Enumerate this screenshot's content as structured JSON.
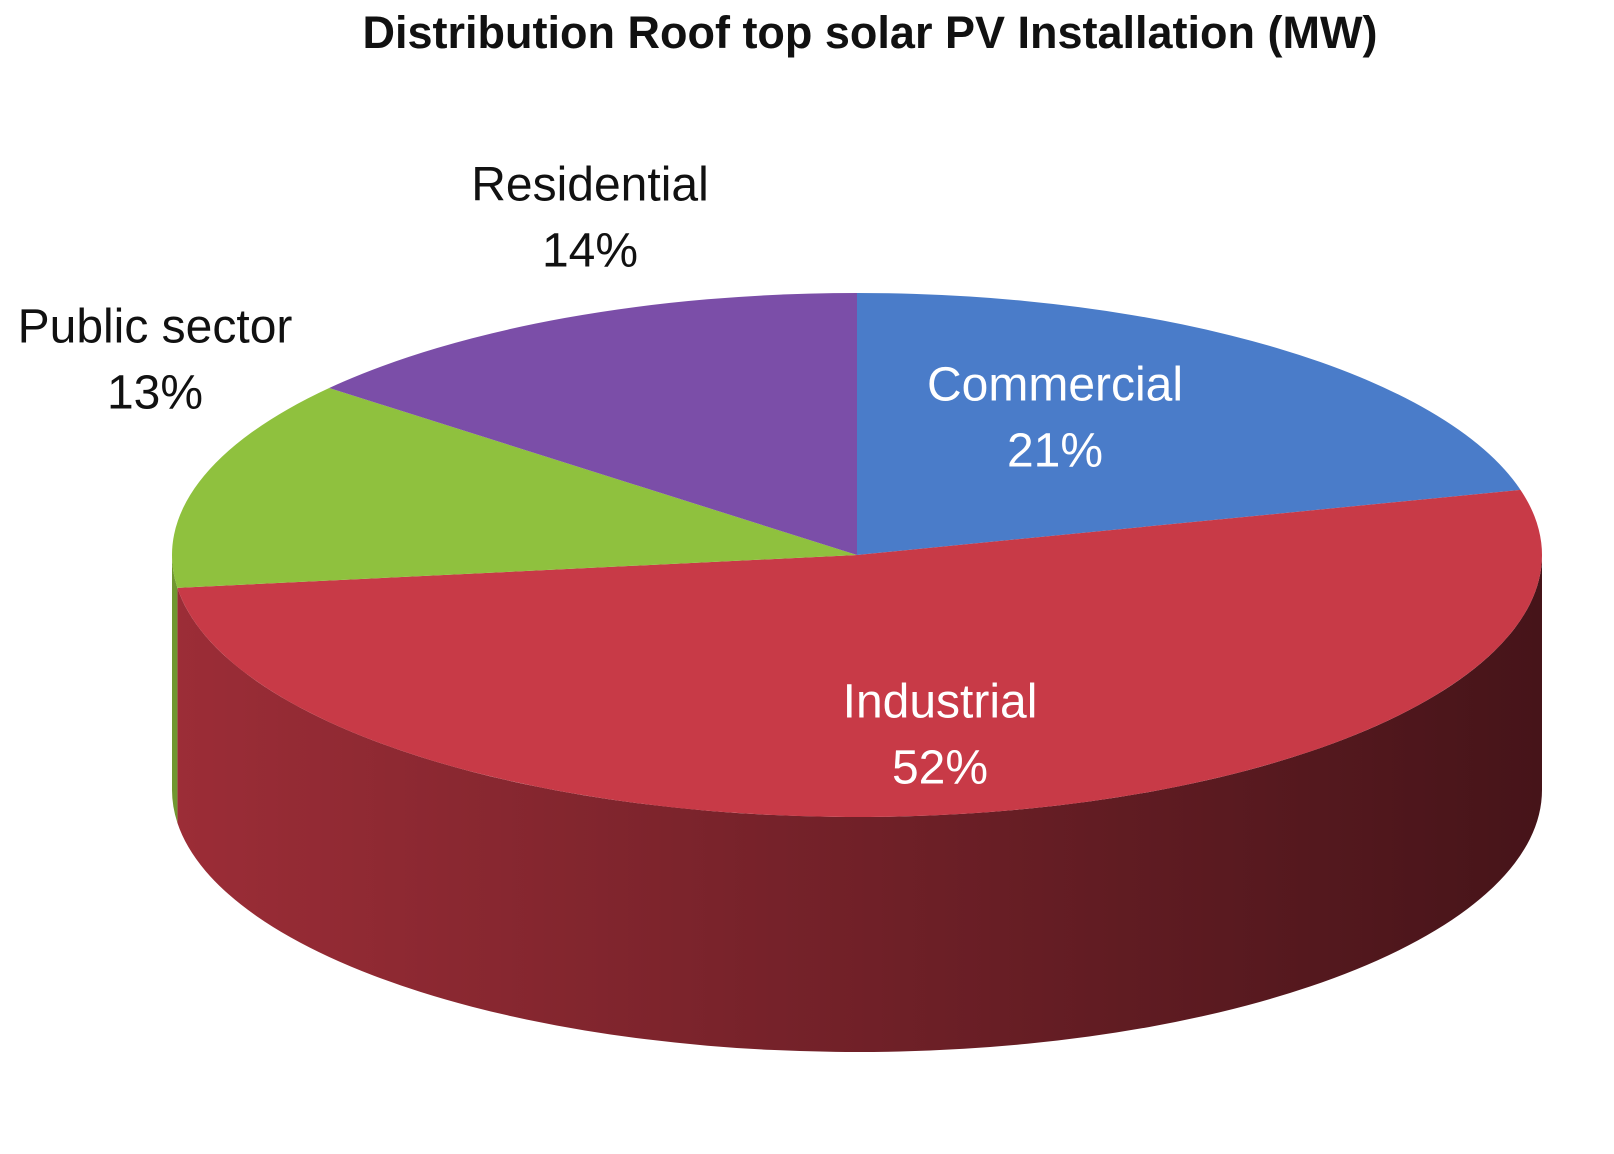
{
  "chart_data": {
    "type": "pie",
    "title": "Distribution Roof top solar PV Installation (MW)",
    "categories": [
      "Commercial",
      "Industrial",
      "Public sector",
      "Residential"
    ],
    "values": [
      21,
      52,
      13,
      14
    ],
    "value_labels": [
      "21%",
      "52%",
      "13%",
      "14%"
    ],
    "colors": [
      "#4a7cc9",
      "#c83a47",
      "#8fc13e",
      "#7b4ea8"
    ]
  }
}
